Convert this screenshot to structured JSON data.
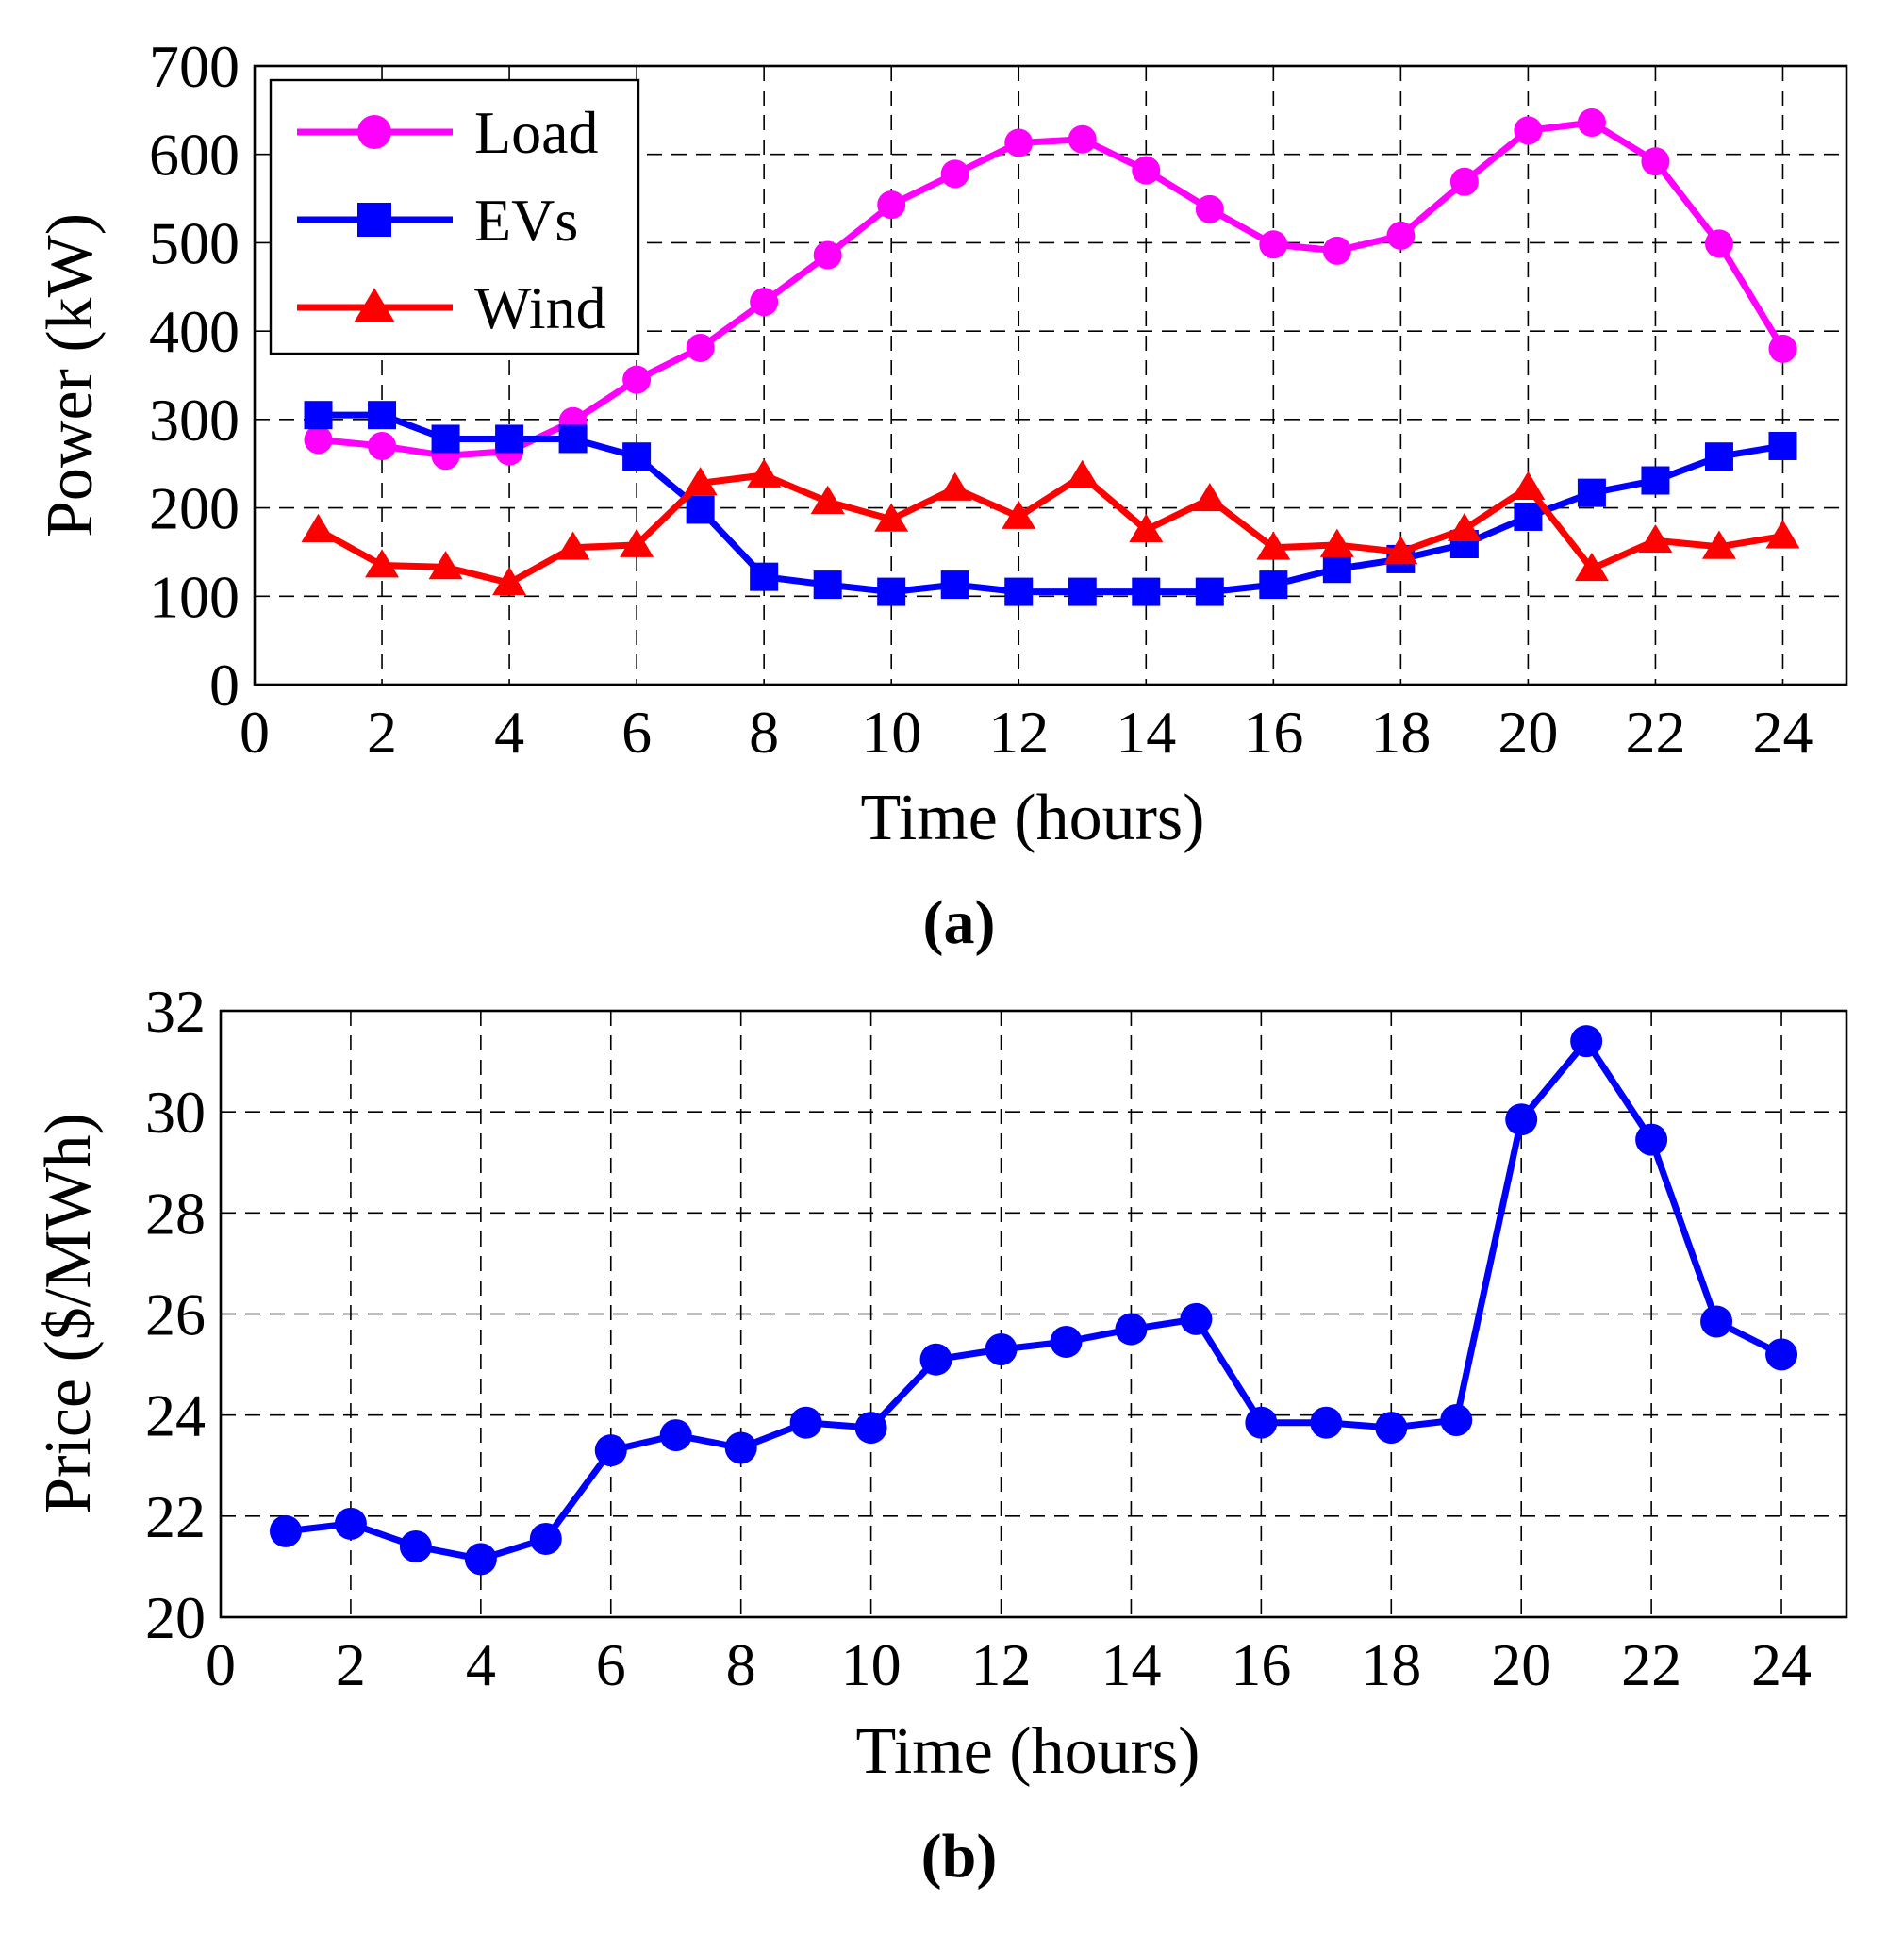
{
  "chart_data": [
    {
      "type": "line",
      "panel": "a",
      "caption": "(a)",
      "xlabel": "Time (hours)",
      "ylabel": "Power (kW)",
      "xlim": [
        0,
        25
      ],
      "ylim": [
        0,
        700
      ],
      "xticks": [
        0,
        2,
        4,
        6,
        8,
        10,
        12,
        14,
        16,
        18,
        20,
        22,
        24
      ],
      "yticks": [
        0,
        100,
        200,
        300,
        400,
        500,
        600,
        700
      ],
      "grid": true,
      "legend_position": "top-left",
      "x": [
        1,
        2,
        3,
        4,
        5,
        6,
        7,
        8,
        9,
        10,
        11,
        12,
        13,
        14,
        15,
        16,
        17,
        18,
        19,
        20,
        21,
        22,
        23,
        24
      ],
      "series": [
        {
          "name": "Load",
          "color": "#ff00ff",
          "marker": "circle",
          "values": [
            277,
            270,
            259,
            264,
            298,
            345,
            381,
            433,
            486,
            543,
            578,
            613,
            617,
            582,
            538,
            498,
            491,
            508,
            569,
            627,
            636,
            592,
            499,
            380
          ]
        },
        {
          "name": "EVs",
          "color": "#0000ff",
          "marker": "square",
          "values": [
            305,
            305,
            278,
            278,
            278,
            258,
            198,
            122,
            113,
            105,
            113,
            105,
            105,
            105,
            105,
            113,
            131,
            142,
            159,
            190,
            217,
            231,
            258,
            270
          ]
        },
        {
          "name": "Wind",
          "color": "#ff0000",
          "marker": "triangle",
          "values": [
            175,
            135,
            133,
            115,
            155,
            158,
            228,
            237,
            207,
            187,
            222,
            190,
            236,
            175,
            210,
            155,
            158,
            150,
            176,
            223,
            131,
            163,
            156,
            168
          ]
        }
      ]
    },
    {
      "type": "line",
      "panel": "b",
      "caption": "(b)",
      "xlabel": "Time (hours)",
      "ylabel": "Price ($/MWh)",
      "xlim": [
        0,
        25
      ],
      "ylim": [
        20,
        32
      ],
      "xticks": [
        0,
        2,
        4,
        6,
        8,
        10,
        12,
        14,
        16,
        18,
        20,
        22,
        24
      ],
      "yticks": [
        20,
        22,
        24,
        26,
        28,
        30,
        32
      ],
      "grid": true,
      "x": [
        1,
        2,
        3,
        4,
        5,
        6,
        7,
        8,
        9,
        10,
        11,
        12,
        13,
        14,
        15,
        16,
        17,
        18,
        19,
        20,
        21,
        22,
        23,
        24
      ],
      "series": [
        {
          "name": "Price",
          "color": "#0000ff",
          "marker": "circle",
          "values": [
            21.7,
            21.85,
            21.4,
            21.15,
            21.55,
            23.3,
            23.6,
            23.35,
            23.85,
            23.75,
            25.1,
            25.3,
            25.45,
            25.7,
            25.9,
            23.85,
            23.85,
            23.75,
            23.9,
            29.85,
            31.4,
            29.45,
            25.85,
            25.2
          ]
        }
      ]
    }
  ]
}
